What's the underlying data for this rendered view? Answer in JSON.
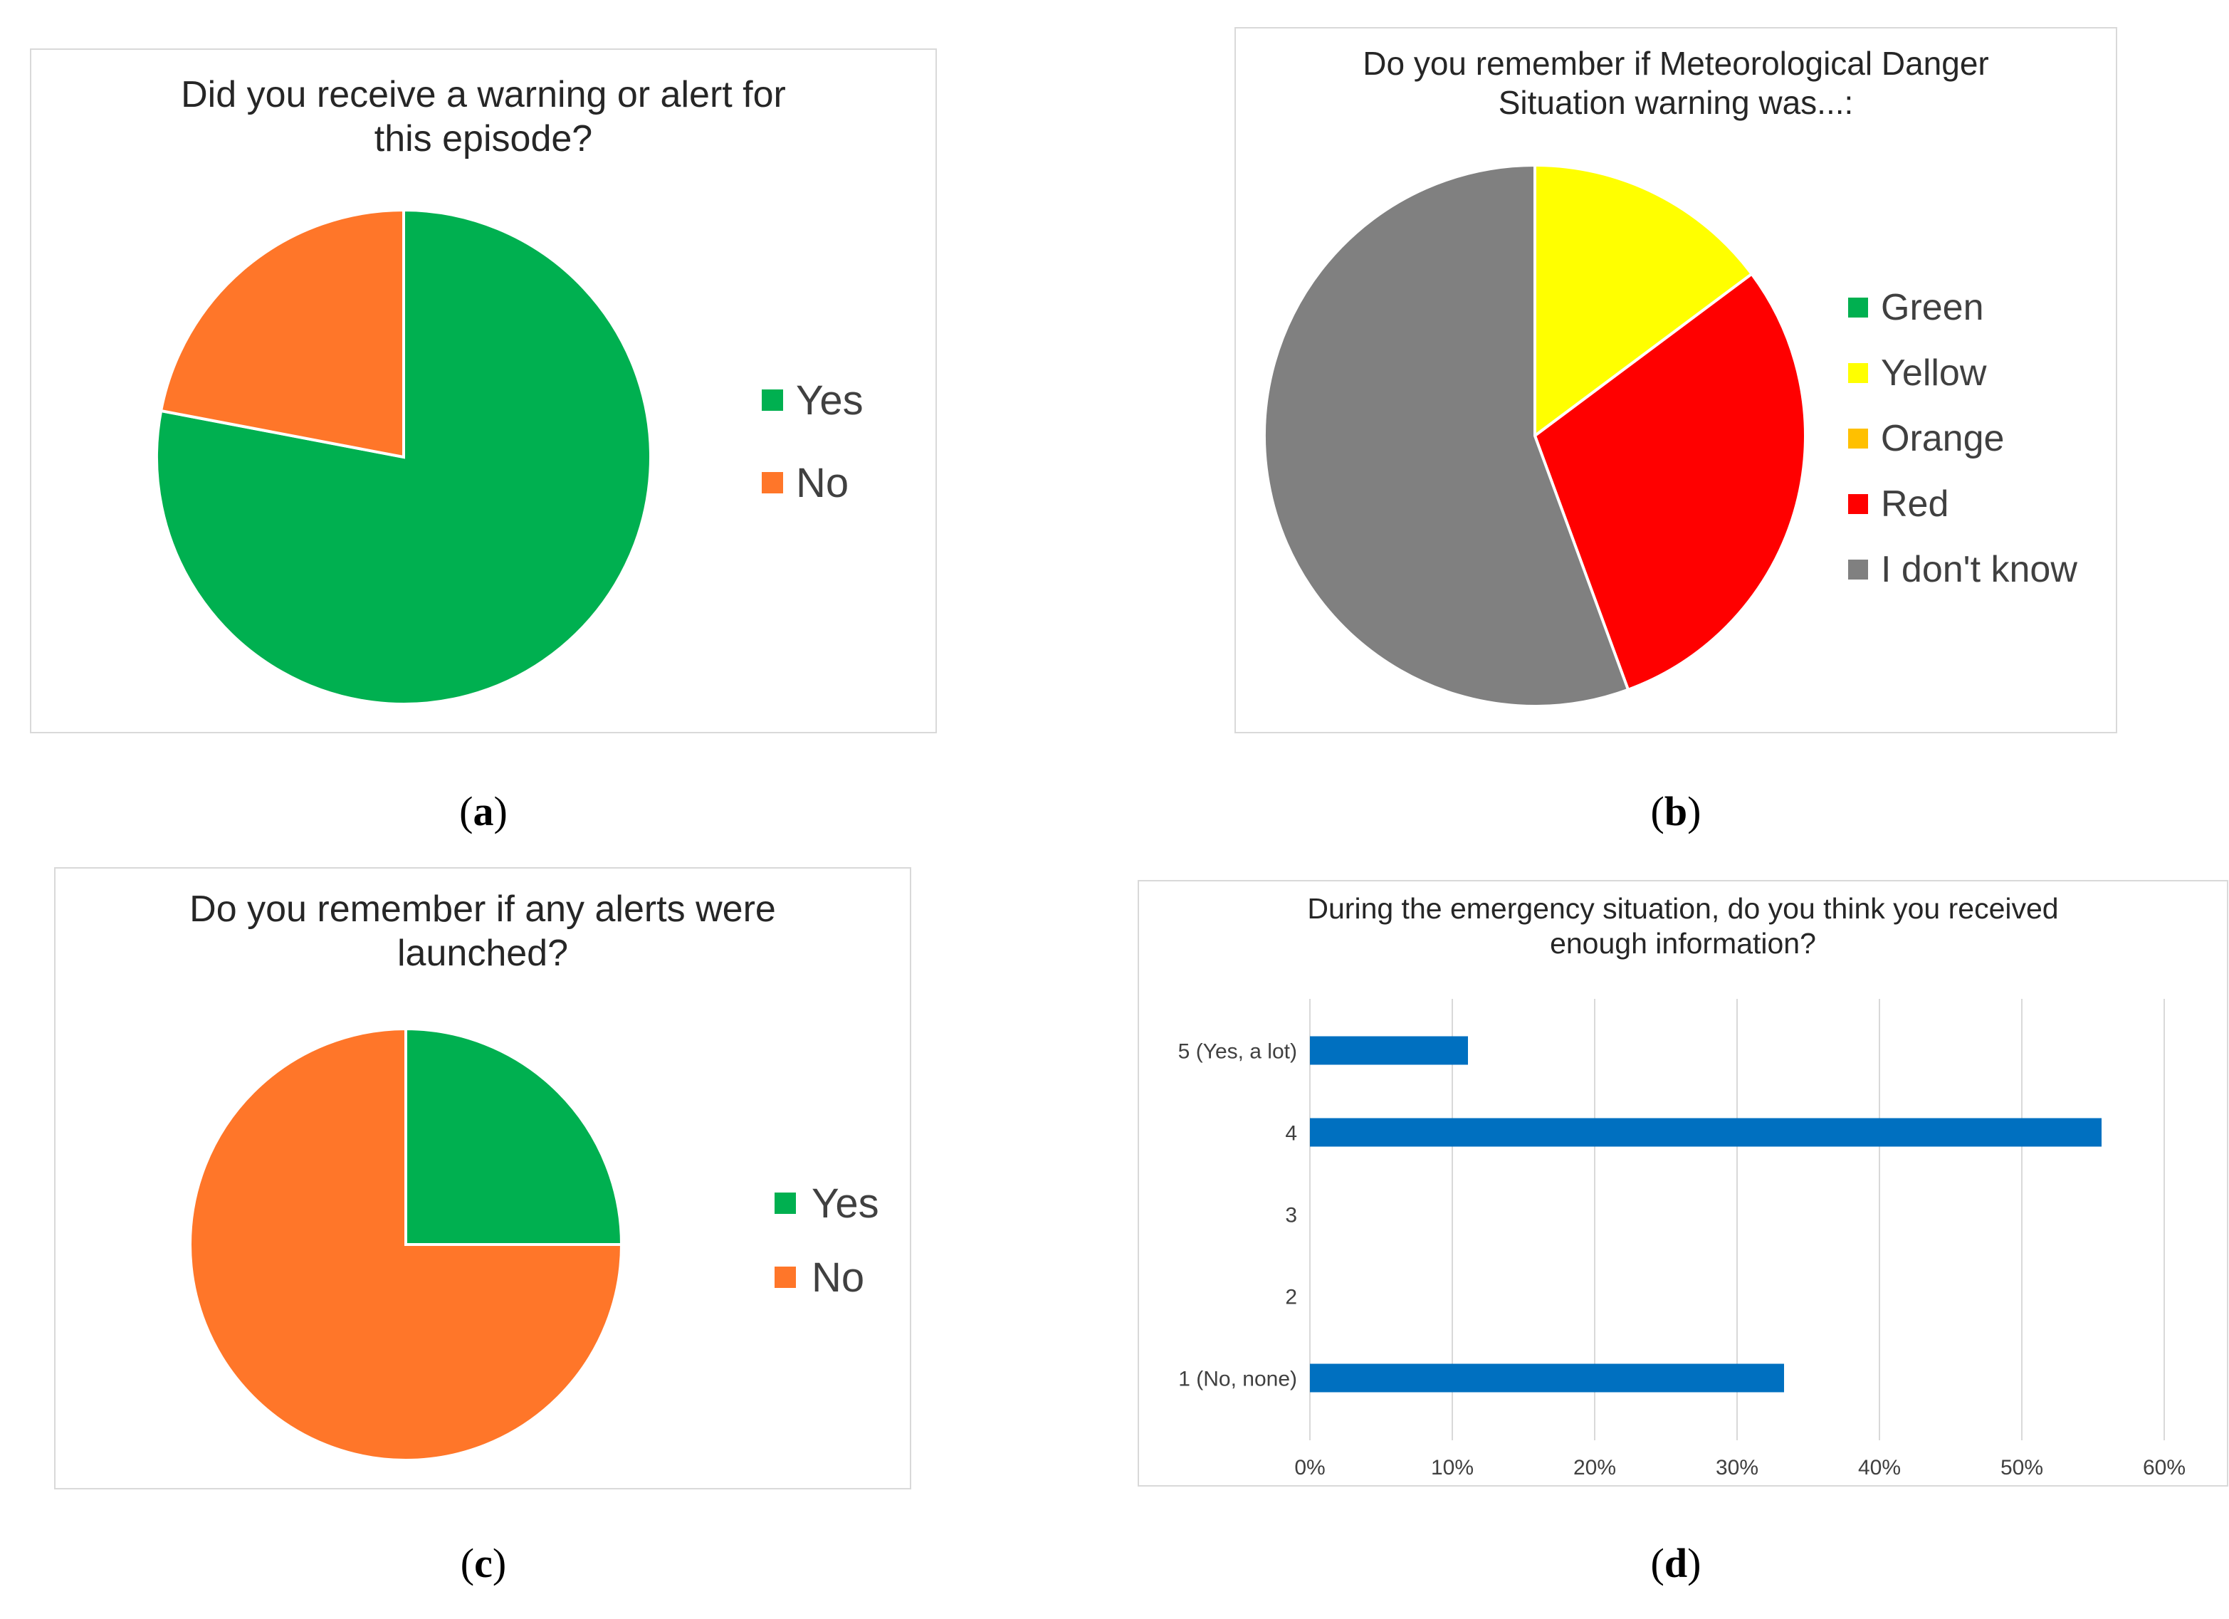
{
  "chart_data": [
    {
      "panel": "a",
      "type": "pie",
      "title_lines": [
        "Did you receive a warning or alert for",
        "this episode?"
      ],
      "categories": [
        "Yes",
        "No"
      ],
      "values": [
        78,
        22
      ],
      "colors": [
        "#00b050",
        "#ff7629"
      ],
      "legend": "right",
      "caption": "a"
    },
    {
      "panel": "b",
      "type": "pie",
      "title_lines": [
        "Do you remember if Meteorological Danger",
        "Situation warning was...:"
      ],
      "categories": [
        "Green",
        "Yellow",
        "Orange",
        "Red",
        "I don't know"
      ],
      "values": [
        0,
        14.8,
        0,
        29.6,
        55.6
      ],
      "colors": [
        "#00b050",
        "#ffff00",
        "#ffc000",
        "#ff0000",
        "#808080"
      ],
      "legend": "right",
      "caption": "b"
    },
    {
      "panel": "c",
      "type": "pie",
      "title_lines": [
        "Do you remember if any alerts were",
        "launched?"
      ],
      "categories": [
        "Yes",
        "No"
      ],
      "values": [
        25,
        75
      ],
      "colors": [
        "#00b050",
        "#ff7629"
      ],
      "legend": "right",
      "caption": "c"
    },
    {
      "panel": "d",
      "type": "bar",
      "orientation": "horizontal",
      "title_lines": [
        "During the emergency situation, do you think you received",
        "enough information?"
      ],
      "categories": [
        "5 (Yes, a lot)",
        "4",
        "3",
        "2",
        "1 (No, none)"
      ],
      "values": [
        11.1,
        55.6,
        0,
        0,
        33.3
      ],
      "xlim": [
        0,
        60
      ],
      "xticks": [
        "0%",
        "10%",
        "20%",
        "30%",
        "40%",
        "50%",
        "60%"
      ],
      "grid": true,
      "color": "#0070c0",
      "caption": "d"
    }
  ]
}
